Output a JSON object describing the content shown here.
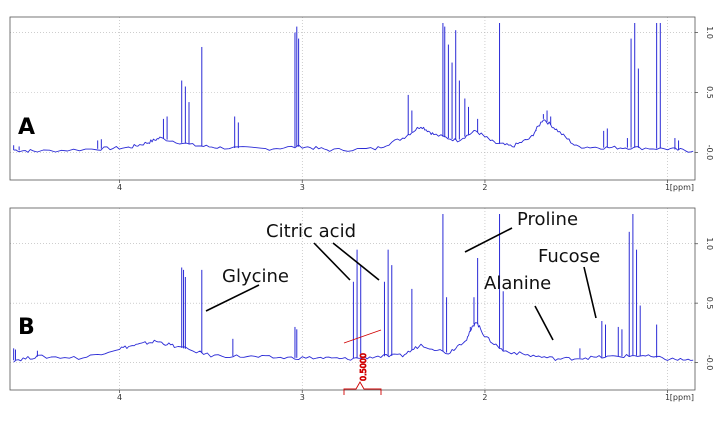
{
  "chart_data": [
    {
      "type": "line",
      "panel_label": "A",
      "x_unit": "[ppm]",
      "x_reversed": true,
      "xlim": [
        4.6,
        0.85
      ],
      "ylim": [
        -0.18,
        1.08
      ],
      "x_ticks": [
        "4",
        "3",
        "2",
        "1"
      ],
      "y_ticks": [
        "-0.0",
        "0.5",
        "1.0"
      ],
      "grid": true,
      "baseline_points": [
        [
          4.58,
          0.02
        ],
        [
          4.45,
          0.01
        ],
        [
          4.12,
          0.03
        ],
        [
          3.95,
          0.04
        ],
        [
          3.85,
          0.08
        ],
        [
          3.78,
          0.12
        ],
        [
          3.6,
          0.06
        ],
        [
          3.45,
          0.04
        ],
        [
          3.2,
          0.03
        ],
        [
          3.0,
          0.05
        ],
        [
          2.85,
          0.02
        ],
        [
          2.6,
          0.03
        ],
        [
          2.45,
          0.12
        ],
        [
          2.35,
          0.22
        ],
        [
          2.28,
          0.15
        ],
        [
          2.15,
          0.1
        ],
        [
          2.05,
          0.18
        ],
        [
          1.95,
          0.08
        ],
        [
          1.85,
          0.05
        ],
        [
          1.75,
          0.12
        ],
        [
          1.68,
          0.28
        ],
        [
          1.6,
          0.18
        ],
        [
          1.5,
          0.05
        ],
        [
          1.35,
          0.04
        ],
        [
          1.2,
          0.04
        ],
        [
          1.0,
          0.03
        ],
        [
          0.86,
          0.01
        ]
      ],
      "peaks": [
        [
          4.58,
          0.06
        ],
        [
          4.55,
          0.05
        ],
        [
          4.12,
          0.1
        ],
        [
          4.1,
          0.11
        ],
        [
          3.76,
          0.28
        ],
        [
          3.74,
          0.3
        ],
        [
          3.66,
          0.6
        ],
        [
          3.64,
          0.55
        ],
        [
          3.62,
          0.42
        ],
        [
          3.55,
          0.88
        ],
        [
          3.37,
          0.3
        ],
        [
          3.35,
          0.25
        ],
        [
          3.04,
          1.0
        ],
        [
          3.03,
          1.05
        ],
        [
          3.02,
          0.95
        ],
        [
          2.42,
          0.48
        ],
        [
          2.4,
          0.35
        ],
        [
          2.23,
          1.08
        ],
        [
          2.22,
          1.05
        ],
        [
          2.2,
          0.9
        ],
        [
          2.18,
          0.75
        ],
        [
          2.16,
          1.02
        ],
        [
          2.14,
          0.6
        ],
        [
          2.11,
          0.45
        ],
        [
          2.09,
          0.38
        ],
        [
          2.04,
          0.28
        ],
        [
          1.92,
          1.08
        ],
        [
          1.72,
          0.18
        ],
        [
          1.68,
          0.32
        ],
        [
          1.66,
          0.35
        ],
        [
          1.64,
          0.3
        ],
        [
          1.35,
          0.18
        ],
        [
          1.33,
          0.2
        ],
        [
          1.22,
          0.12
        ],
        [
          1.2,
          0.95
        ],
        [
          1.18,
          1.08
        ],
        [
          1.16,
          0.7
        ],
        [
          1.06,
          1.08
        ],
        [
          1.04,
          1.08
        ],
        [
          0.96,
          0.12
        ],
        [
          0.94,
          0.1
        ]
      ]
    },
    {
      "type": "line",
      "panel_label": "B",
      "x_unit": "[ppm]",
      "x_reversed": true,
      "xlim": [
        4.6,
        0.85
      ],
      "ylim": [
        -0.18,
        1.25
      ],
      "x_ticks": [
        "4",
        "3",
        "2",
        "1"
      ],
      "y_ticks": [
        "-0.0",
        "0.5",
        "1.0"
      ],
      "grid": true,
      "integral_label": "0.5000",
      "baseline_points": [
        [
          4.58,
          0.02
        ],
        [
          4.45,
          0.05
        ],
        [
          4.2,
          0.04
        ],
        [
          4.0,
          0.12
        ],
        [
          3.9,
          0.15
        ],
        [
          3.8,
          0.18
        ],
        [
          3.7,
          0.14
        ],
        [
          3.5,
          0.06
        ],
        [
          3.3,
          0.05
        ],
        [
          3.1,
          0.04
        ],
        [
          2.9,
          0.04
        ],
        [
          2.75,
          0.03
        ],
        [
          2.6,
          0.05
        ],
        [
          2.45,
          0.06
        ],
        [
          2.35,
          0.15
        ],
        [
          2.2,
          0.08
        ],
        [
          2.1,
          0.2
        ],
        [
          2.05,
          0.35
        ],
        [
          2.0,
          0.22
        ],
        [
          1.9,
          0.1
        ],
        [
          1.75,
          0.06
        ],
        [
          1.6,
          0.03
        ],
        [
          1.45,
          0.04
        ],
        [
          1.3,
          0.05
        ],
        [
          1.15,
          0.06
        ],
        [
          1.0,
          0.03
        ],
        [
          0.86,
          0.02
        ]
      ],
      "peaks": [
        [
          4.58,
          0.12
        ],
        [
          4.57,
          0.11
        ],
        [
          4.45,
          0.1
        ],
        [
          3.66,
          0.8
        ],
        [
          3.65,
          0.78
        ],
        [
          3.64,
          0.72
        ],
        [
          3.55,
          0.78
        ],
        [
          3.38,
          0.2
        ],
        [
          3.04,
          0.3
        ],
        [
          3.03,
          0.28
        ],
        [
          2.72,
          0.68
        ],
        [
          2.7,
          0.95
        ],
        [
          2.68,
          0.82
        ],
        [
          2.55,
          0.68
        ],
        [
          2.53,
          0.95
        ],
        [
          2.51,
          0.82
        ],
        [
          2.4,
          0.62
        ],
        [
          2.23,
          1.25
        ],
        [
          2.21,
          0.55
        ],
        [
          2.08,
          0.3
        ],
        [
          2.06,
          0.55
        ],
        [
          2.04,
          0.88
        ],
        [
          1.92,
          1.25
        ],
        [
          1.9,
          0.6
        ],
        [
          1.48,
          0.12
        ],
        [
          1.36,
          0.35
        ],
        [
          1.34,
          0.32
        ],
        [
          1.27,
          0.3
        ],
        [
          1.25,
          0.28
        ],
        [
          1.21,
          1.1
        ],
        [
          1.19,
          1.25
        ],
        [
          1.17,
          0.95
        ],
        [
          1.15,
          0.48
        ],
        [
          1.06,
          0.32
        ]
      ],
      "annotations": [
        {
          "text": "Citric acid",
          "targets_ppm": [
            2.7,
            2.53
          ]
        },
        {
          "text": "Glycine",
          "targets_ppm": [
            3.55
          ]
        },
        {
          "text": "Proline",
          "targets_ppm": [
            2.04
          ]
        },
        {
          "text": "Alanine",
          "targets_ppm": [
            1.48
          ]
        },
        {
          "text": "Fucose",
          "targets_ppm": [
            1.25
          ]
        }
      ]
    }
  ]
}
